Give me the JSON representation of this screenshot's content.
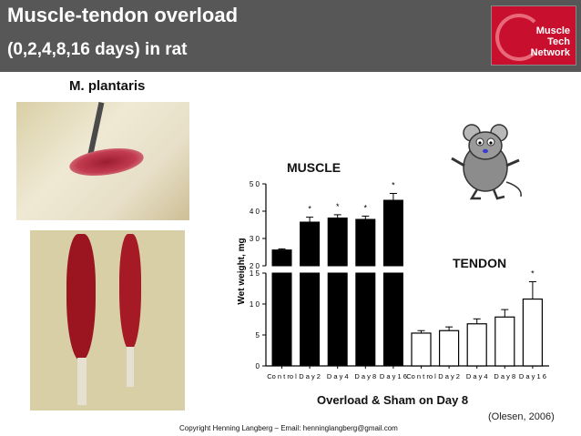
{
  "slide": {
    "title_line1": "Muscle-tendon overload",
    "title_line2": "(0,2,4,8,16 days) in rat",
    "subtitle": "M. plantaris",
    "muscle_label": "MUSCLE",
    "tendon_label": "TENDON",
    "x_caption": "Overload & Sham on Day 8",
    "citation": "(Olesen, 2006)",
    "copyright": "Copyright Henning Langberg – Email: henninglangberg@gmail.com",
    "logo": {
      "line1": "Muscle",
      "line2": "Tech",
      "line3": "Network",
      "color": "#c8102e"
    },
    "header_color": "#575757"
  },
  "chart_data": {
    "type": "bar",
    "ylabel": "Wet weight, mg",
    "ylim": [
      0,
      50
    ],
    "axis_break": [
      15,
      20
    ],
    "yticks_lower": [
      0,
      5,
      10,
      15
    ],
    "yticks_upper": [
      20,
      30,
      40,
      50
    ],
    "ytick_labels_lower": [
      "0",
      "5",
      "1 0",
      "1 5"
    ],
    "ytick_labels_upper": [
      "2 0",
      "3 0",
      "4 0",
      "5 0"
    ],
    "categories": [
      "Co n t ro l",
      "D a y 2",
      "D a y 4",
      "D a y 8",
      "D a y 1 6",
      "Co n t ro l",
      "D a y 2",
      "D a y 4",
      "D a y 8",
      "D a y 1 6"
    ],
    "series": [
      {
        "group": "muscle",
        "fill": "#000000",
        "values": [
          25.8,
          36.0,
          37.5,
          37.0,
          44.0,
          null,
          null,
          null,
          null,
          null
        ],
        "errors": [
          0.4,
          1.8,
          1.2,
          1.2,
          2.5,
          null,
          null,
          null,
          null,
          null
        ],
        "significant": [
          false,
          true,
          true,
          true,
          true,
          false,
          false,
          false,
          false,
          false
        ]
      },
      {
        "group": "tendon",
        "fill": "#ffffff",
        "values": [
          null,
          null,
          null,
          null,
          null,
          5.3,
          5.7,
          6.8,
          7.9,
          10.8
        ],
        "errors": [
          null,
          null,
          null,
          null,
          null,
          0.4,
          0.6,
          0.8,
          1.2,
          2.8
        ],
        "significant": [
          false,
          false,
          false,
          false,
          false,
          false,
          false,
          false,
          false,
          true
        ]
      }
    ],
    "significance_marker": "*",
    "grid": false,
    "legend": false
  }
}
